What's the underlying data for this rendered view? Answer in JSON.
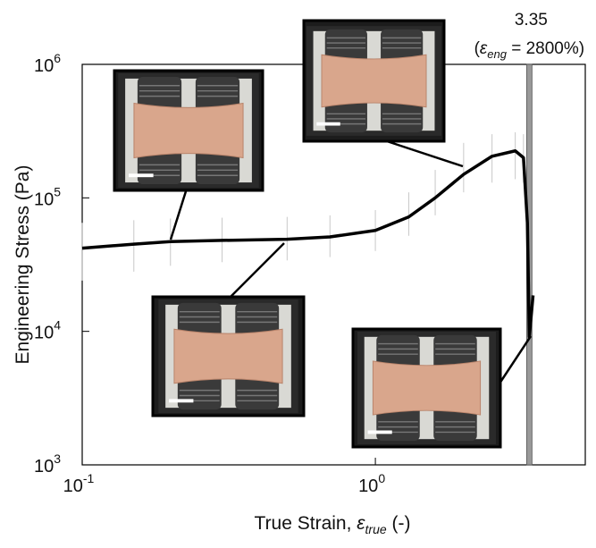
{
  "chart_data": {
    "type": "line",
    "x_label": [
      "True Strain, ",
      "ε",
      "true",
      " (-)"
    ],
    "y_label": "Engineering Stress (Pa)",
    "x_log": true,
    "y_log": true,
    "xlim": [
      0.1,
      5.2
    ],
    "ylim": [
      1000,
      1000000
    ],
    "xticks": [
      {
        "value": 0.1,
        "label": "10",
        "exponent": "-1"
      },
      {
        "value": 1,
        "label": "10",
        "exponent": "0"
      }
    ],
    "yticks": [
      {
        "value": 1000,
        "label": "10",
        "exponent": "3"
      },
      {
        "value": 10000,
        "label": "10",
        "exponent": "4"
      },
      {
        "value": 100000,
        "label": "10",
        "exponent": "5"
      },
      {
        "value": 1000000,
        "label": "10",
        "exponent": "6"
      }
    ],
    "x": [
      0.1,
      0.15,
      0.2,
      0.3,
      0.5,
      0.7,
      1.0,
      1.3,
      1.6,
      2.0,
      2.5,
      3.0,
      3.2,
      3.3,
      3.35,
      3.45
    ],
    "series": [
      {
        "color": "#000000",
        "values": [
          42000,
          45000,
          47000,
          48000,
          49000,
          51000,
          57000,
          72000,
          100000,
          150000,
          205000,
          225000,
          200000,
          65000,
          9100,
          18600
        ],
        "upper": [
          65000,
          68000,
          70000,
          71000,
          72000,
          74000,
          81000,
          110000,
          162000,
          258000,
          300000,
          310000,
          300000,
          null,
          null,
          null
        ],
        "lower": [
          24000,
          28000,
          31000,
          33000,
          34000,
          36000,
          40000,
          52000,
          74000,
          110000,
          130000,
          138000,
          130000,
          null,
          null,
          null
        ],
        "band_color": "#c8c8c8"
      }
    ],
    "vline": {
      "x": 3.35,
      "color": "#999999",
      "note": [
        "(",
        "ε",
        "eng",
        " = 2800%)"
      ]
    }
  }
}
